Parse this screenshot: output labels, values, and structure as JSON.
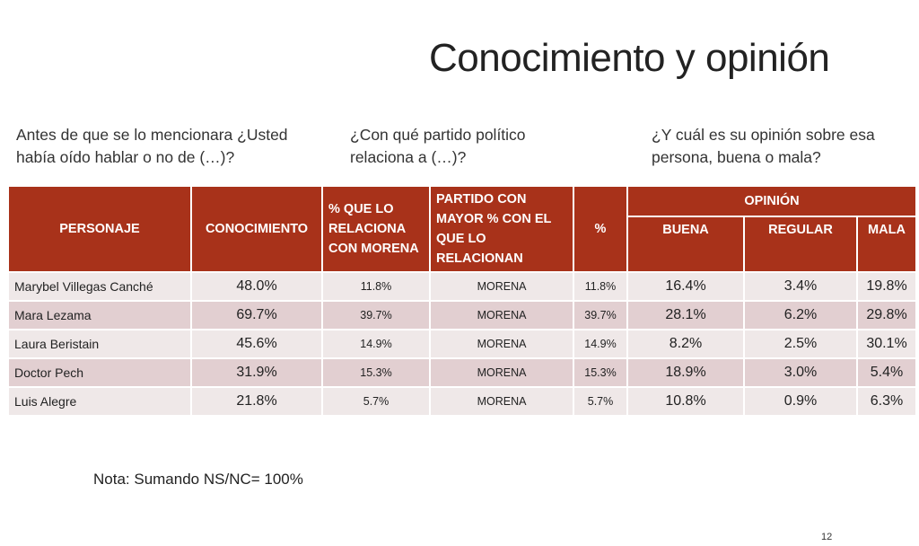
{
  "title": "Conocimiento y opinión",
  "questions": {
    "q1": "Antes de que se lo mencionara ¿Usted había oído hablar o no de (…)?",
    "q2": "¿Con qué partido político relaciona a (…)?",
    "q3": "¿Y cuál es su opinión sobre esa persona, buena o mala?"
  },
  "table": {
    "headers": {
      "personaje": "PERSONAJE",
      "conocimiento": "CONOCIMIENTO",
      "relaciona_morena": "% QUE LO RELACIONA CON MORENA",
      "partido_mayor": "PARTIDO CON MAYOR % CON EL QUE LO RELACIONAN",
      "pct": "%",
      "opinion": "OPINIÓN",
      "buena": "BUENA",
      "regular": "REGULAR",
      "mala": "MALA"
    },
    "rows": [
      {
        "personaje": "Marybel Villegas Canché",
        "conocimiento": "48.0%",
        "relaciona": "11.8%",
        "partido": "MORENA",
        "pct": "11.8%",
        "buena": "16.4%",
        "regular": "3.4%",
        "mala": "19.8%"
      },
      {
        "personaje": "Mara Lezama",
        "conocimiento": "69.7%",
        "relaciona": "39.7%",
        "partido": "MORENA",
        "pct": "39.7%",
        "buena": "28.1%",
        "regular": "6.2%",
        "mala": "29.8%"
      },
      {
        "personaje": "Laura Beristain",
        "conocimiento": "45.6%",
        "relaciona": "14.9%",
        "partido": "MORENA",
        "pct": "14.9%",
        "buena": "8.2%",
        "regular": "2.5%",
        "mala": "30.1%"
      },
      {
        "personaje": "Doctor Pech",
        "conocimiento": "31.9%",
        "relaciona": "15.3%",
        "partido": "MORENA",
        "pct": "15.3%",
        "buena": "18.9%",
        "regular": "3.0%",
        "mala": "5.4%"
      },
      {
        "personaje": "Luis Alegre",
        "conocimiento": "21.8%",
        "relaciona": "5.7%",
        "partido": "MORENA",
        "pct": "5.7%",
        "buena": "10.8%",
        "regular": "0.9%",
        "mala": "6.3%"
      }
    ]
  },
  "note": "Nota: Sumando NS/NC= 100%",
  "page_number": "12",
  "colors": {
    "header_bg": "#a8321a",
    "row_light": "#efe8e8",
    "row_dark": "#e2cfd1"
  }
}
